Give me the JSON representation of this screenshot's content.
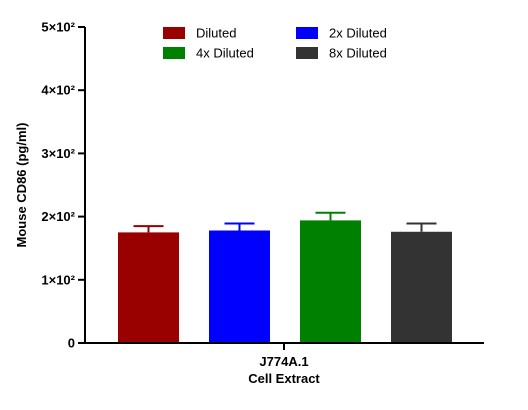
{
  "chart_data": {
    "type": "bar",
    "title": "",
    "xlabel": "",
    "ylabel": "Mouse CD86 (pg/ml)",
    "x_category_label_lines": [
      "J774A.1",
      "Cell Extract"
    ],
    "ylim": [
      0,
      500
    ],
    "y_ticks": [
      {
        "value": 0,
        "label": "0"
      },
      {
        "value": 100,
        "label": "1×10²"
      },
      {
        "value": 200,
        "label": "2×10²"
      },
      {
        "value": 300,
        "label": "3×10²"
      },
      {
        "value": 400,
        "label": "4×10²"
      },
      {
        "value": 500,
        "label": "5×10²"
      }
    ],
    "grid": false,
    "legend_position": "top",
    "series": [
      {
        "name": "Diluted",
        "value": 175,
        "error": 10,
        "color": "#990000"
      },
      {
        "name": "2x Diluted",
        "value": 178,
        "error": 11,
        "color": "#0000ff"
      },
      {
        "name": "4x Diluted",
        "value": 194,
        "error": 12,
        "color": "#008000"
      },
      {
        "name": "8x Diluted",
        "value": 176,
        "error": 13,
        "color": "#333333"
      }
    ]
  }
}
